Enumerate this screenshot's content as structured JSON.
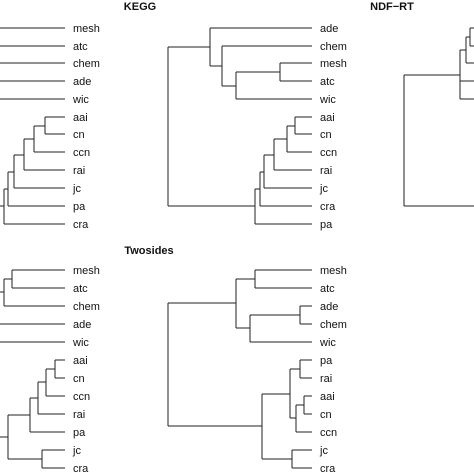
{
  "panels": [
    {
      "id": "top-left",
      "title": "",
      "leaves": [
        "mesh",
        "atc",
        "chem",
        "ade",
        "wic",
        "aai",
        "cn",
        "ccn",
        "rai",
        "jc",
        "pa",
        "cra"
      ]
    },
    {
      "id": "kegg",
      "title": "KEGG",
      "leaves": [
        "ade",
        "chem",
        "mesh",
        "atc",
        "wic",
        "aai",
        "cn",
        "ccn",
        "rai",
        "jc",
        "cra",
        "pa"
      ]
    },
    {
      "id": "ndf-rt",
      "title": "NDF−RT",
      "leaves": []
    },
    {
      "id": "bottom-left",
      "title": "",
      "leaves": [
        "mesh",
        "atc",
        "chem",
        "ade",
        "wic",
        "aai",
        "cn",
        "ccn",
        "rai",
        "pa",
        "jc",
        "cra"
      ]
    },
    {
      "id": "twosides",
      "title": "Twosides",
      "leaves": [
        "mesh",
        "atc",
        "ade",
        "chem",
        "wic",
        "pa",
        "rai",
        "aai",
        "cn",
        "ccn",
        "jc",
        "cra"
      ]
    }
  ]
}
